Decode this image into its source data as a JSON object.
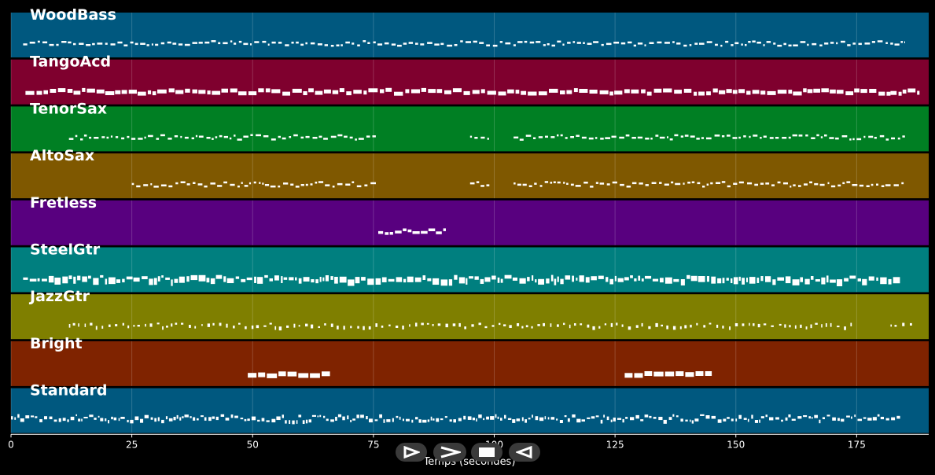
{
  "timeline": {
    "axis_title": "Temps (secondes)",
    "x_ticks": [
      "0",
      "25",
      "50",
      "75",
      "100",
      "125",
      "150",
      "175"
    ],
    "duration_max": 190,
    "tracks": [
      {
        "name": "WoodBass",
        "color": "#00587f",
        "segments": [
          [
            2.5,
            185
          ]
        ],
        "style": "dash"
      },
      {
        "name": "TangoAcd",
        "color": "#7f002e",
        "segments": [
          [
            3,
            182
          ],
          [
            182,
            188
          ]
        ],
        "style": "block"
      },
      {
        "name": "TenorSax",
        "color": "#007f23",
        "segments": [
          [
            12,
            76
          ],
          [
            95,
            99
          ],
          [
            104,
            185
          ]
        ],
        "style": "dash"
      },
      {
        "name": "AltoSax",
        "color": "#7f5800",
        "segments": [
          [
            25,
            76
          ],
          [
            95,
            99
          ],
          [
            104,
            185
          ]
        ],
        "style": "dash"
      },
      {
        "name": "Fretless",
        "color": "#58007f",
        "segments": [
          [
            76,
            90
          ]
        ],
        "style": "solo"
      },
      {
        "name": "SteelGtr",
        "color": "#007f7f",
        "segments": [
          [
            2.5,
            184
          ]
        ],
        "style": "dense"
      },
      {
        "name": "JazzGtr",
        "color": "#7f7f00",
        "segments": [
          [
            12,
            174
          ],
          [
            182,
            187
          ]
        ],
        "style": "sparse"
      },
      {
        "name": "Bright",
        "color": "#7f2300",
        "segments": [
          [
            49,
            66
          ],
          [
            127,
            145
          ]
        ],
        "style": "chords"
      },
      {
        "name": "Standard",
        "color": "#00587f",
        "segments": [
          [
            0,
            184
          ]
        ],
        "style": "drum"
      }
    ]
  },
  "controls": [
    {
      "name": "play-button",
      "icon": "play-icon"
    },
    {
      "name": "forward-button",
      "icon": "chevron-right-icon"
    },
    {
      "name": "stop-button",
      "icon": "stop-icon"
    },
    {
      "name": "rewind-button",
      "icon": "play-left-icon"
    }
  ]
}
